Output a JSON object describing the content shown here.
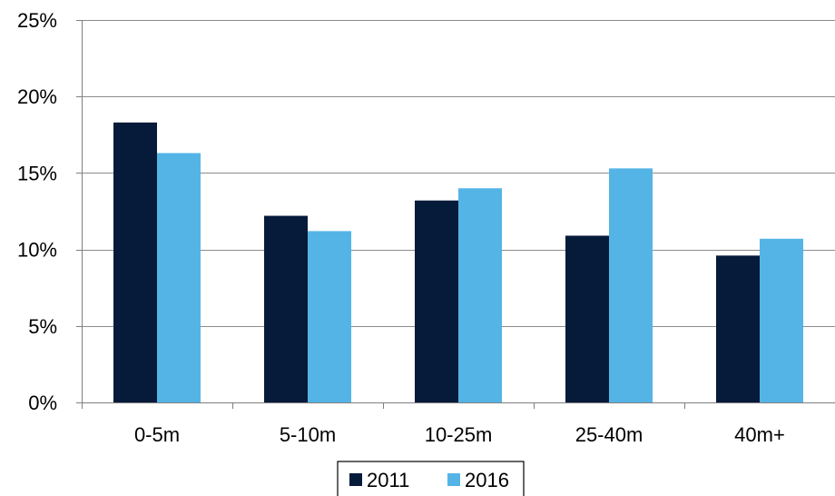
{
  "chart_data": {
    "type": "bar",
    "categories": [
      "0-5m",
      "5-10m",
      "10-25m",
      "25-40m",
      "40m+"
    ],
    "series": [
      {
        "name": "2011",
        "color": "#061a3a",
        "values": [
          18.3,
          12.2,
          13.2,
          10.9,
          9.6
        ]
      },
      {
        "name": "2016",
        "color": "#55b4e6",
        "values": [
          16.3,
          11.2,
          14.0,
          15.3,
          10.7
        ]
      }
    ],
    "ylim": [
      0,
      25
    ],
    "yticks": [
      0,
      5,
      10,
      15,
      20,
      25
    ],
    "ytick_labels": [
      "0%",
      "5%",
      "10%",
      "15%",
      "20%",
      "25%"
    ],
    "grid": true,
    "legend_position": "bottom",
    "title": "",
    "xlabel": "",
    "ylabel": ""
  }
}
